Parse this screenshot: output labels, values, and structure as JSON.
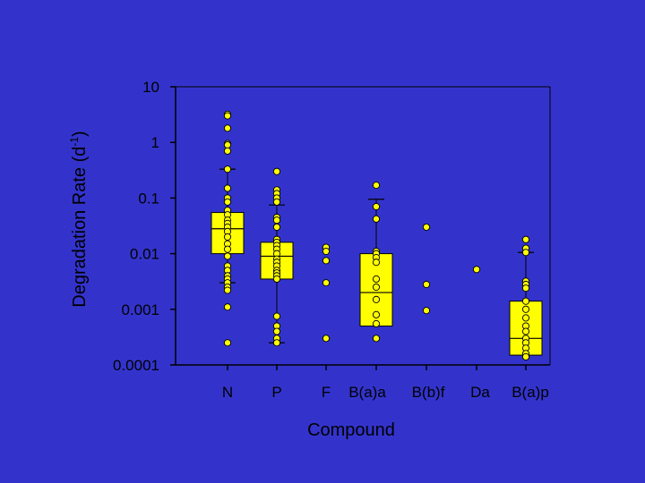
{
  "chart_data": {
    "type": "box",
    "xlabel": "Compound",
    "ylabel_main": "Degradation Rate (d",
    "ylabel_sup": "-1",
    "ylabel_end": ")",
    "yscale": "log",
    "ylim": [
      0.0001,
      10
    ],
    "yticks": [
      {
        "value": 10,
        "label": "10"
      },
      {
        "value": 1,
        "label": "1"
      },
      {
        "value": 0.1,
        "label": "0.1"
      },
      {
        "value": 0.01,
        "label": "0.01"
      },
      {
        "value": 0.001,
        "label": "0.001"
      },
      {
        "value": 0.0001,
        "label": "0.0001"
      }
    ],
    "categories": [
      "N",
      "P",
      "F",
      "B(a)a",
      "B(b)f",
      "Da",
      "B(a)p"
    ],
    "boxes": [
      {
        "category": "N",
        "q1": 0.01,
        "median": 0.028,
        "q3": 0.055,
        "whisker_low": 0.003,
        "whisker_high": 0.33
      },
      {
        "category": "P",
        "q1": 0.0035,
        "median": 0.009,
        "q3": 0.016,
        "whisker_low": 0.00025,
        "whisker_high": 0.075
      },
      {
        "category": "B(a)a",
        "q1": 0.0005,
        "median": 0.002,
        "q3": 0.01,
        "whisker_low": null,
        "whisker_high": 0.095
      },
      {
        "category": "B(a)p",
        "q1": 0.00015,
        "median": 0.0003,
        "q3": 0.0014,
        "whisker_low": null,
        "whisker_high": 0.0105
      }
    ],
    "points": [
      {
        "category": "N",
        "values": [
          3.2,
          3.0,
          1.8,
          0.95,
          0.9,
          0.7,
          0.33,
          0.15,
          0.1,
          0.085,
          0.06,
          0.05,
          0.04,
          0.035,
          0.03,
          0.025,
          0.02,
          0.015,
          0.012,
          0.009,
          0.006,
          0.005,
          0.004,
          0.0035,
          0.003,
          0.0025,
          0.0022,
          0.0011,
          0.00025
        ]
      },
      {
        "category": "P",
        "values": [
          0.3,
          0.14,
          0.12,
          0.1,
          0.085,
          0.045,
          0.04,
          0.03,
          0.018,
          0.016,
          0.014,
          0.012,
          0.01,
          0.008,
          0.007,
          0.006,
          0.005,
          0.0045,
          0.004,
          0.0035,
          0.00075,
          0.0005,
          0.0004,
          0.0003,
          0.00025
        ]
      },
      {
        "category": "F",
        "values": [
          0.013,
          0.011,
          0.0075,
          0.003,
          0.0003
        ]
      },
      {
        "category": "B(a)a",
        "values": [
          0.17,
          0.07,
          0.042,
          0.011,
          0.01,
          0.0085,
          0.007,
          0.0035,
          0.0025,
          0.0015,
          0.0008,
          0.00055,
          0.0003
        ]
      },
      {
        "category": "B(b)f",
        "values": [
          0.03,
          0.0028,
          0.00095
        ]
      },
      {
        "category": "Da",
        "values": [
          0.0052
        ]
      },
      {
        "category": "B(a)p",
        "values": [
          0.018,
          0.0125,
          0.0105,
          0.0032,
          0.0028,
          0.0024,
          0.0014,
          0.001,
          0.0007,
          0.0005,
          0.0004,
          0.0003,
          0.00025,
          0.0002,
          0.00016,
          0.00014
        ]
      }
    ],
    "colors": {
      "background": "#3333cc",
      "box_fill": "#ffff00",
      "marker": "#ffff00",
      "outline": "#000000"
    },
    "grid": false,
    "legend": "none"
  }
}
